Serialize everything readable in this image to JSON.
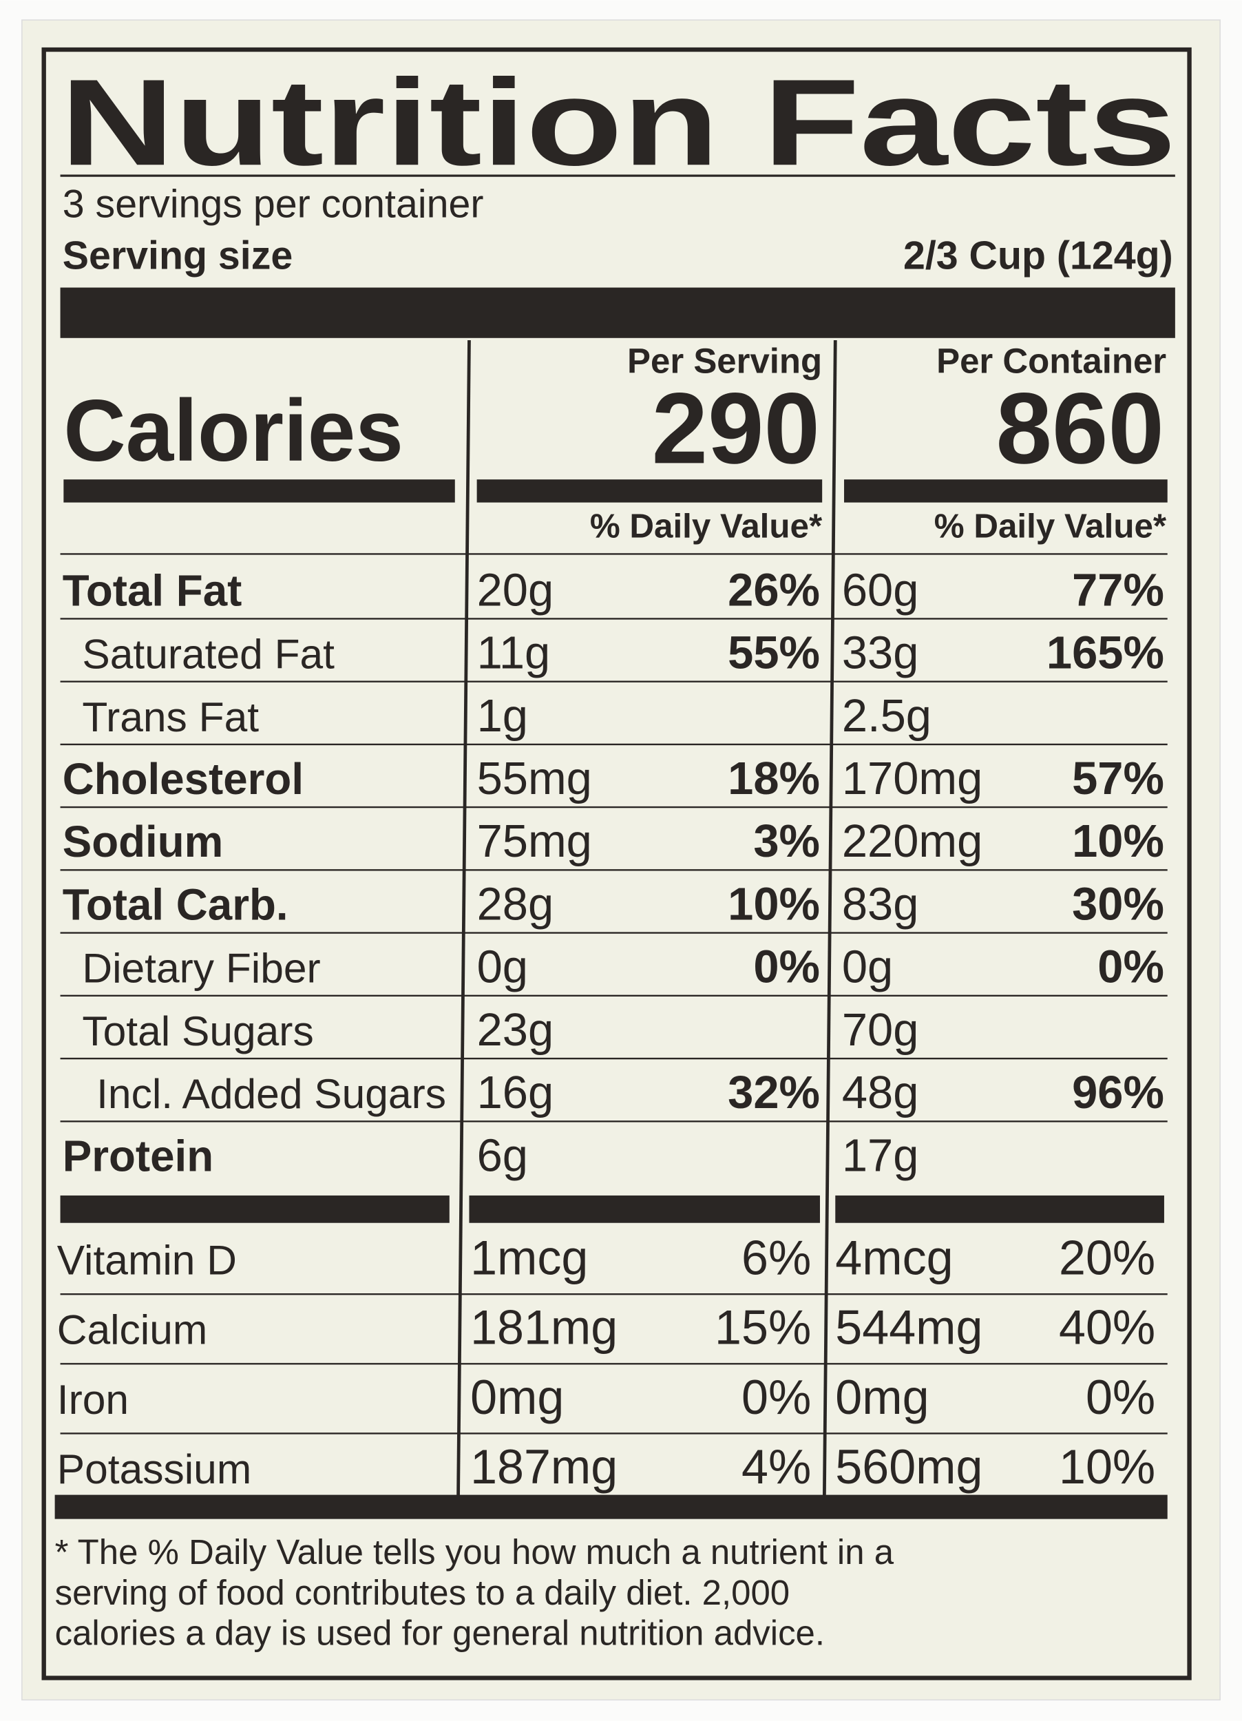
{
  "header": {
    "title": "Nutrition Facts",
    "servings": "3 servings per container",
    "serving_size_label": "Serving size",
    "serving_size": "2/3 Cup (124g)"
  },
  "calories_label": "Calories",
  "columns": [
    {
      "heading": "Per Serving",
      "calories": 290,
      "dv_heading": "% Daily Value*"
    },
    {
      "heading": "Per Container",
      "calories": 860,
      "dv_heading": "% Daily Value*"
    }
  ],
  "nutrients": [
    {
      "name": "Total Fat",
      "per_serving": {
        "amount": "20g",
        "dv": "26%"
      },
      "per_container": {
        "amount": "60g",
        "dv": "77%"
      },
      "sub": [
        {
          "name": "Saturated Fat",
          "per_serving": {
            "amount": "11g",
            "dv": "55%"
          },
          "per_container": {
            "amount": "33g",
            "dv": "165%"
          }
        },
        {
          "name": "Trans Fat",
          "per_serving": {
            "amount": "1g"
          },
          "per_container": {
            "amount": "2.5g"
          }
        }
      ]
    },
    {
      "name": "Cholesterol",
      "per_serving": {
        "amount": "55mg",
        "dv": "18%"
      },
      "per_container": {
        "amount": "170mg",
        "dv": "57%"
      }
    },
    {
      "name": "Sodium",
      "per_serving": {
        "amount": "75mg",
        "dv": "3%"
      },
      "per_container": {
        "amount": "220mg",
        "dv": "10%"
      }
    },
    {
      "name": "Total Carb.",
      "per_serving": {
        "amount": "28g",
        "dv": "10%"
      },
      "per_container": {
        "amount": "83g",
        "dv": "30%"
      },
      "sub": [
        {
          "name": "Dietary Fiber",
          "per_serving": {
            "amount": "0g",
            "dv": "0%"
          },
          "per_container": {
            "amount": "0g",
            "dv": "0%"
          }
        },
        {
          "name": "Total Sugars",
          "per_serving": {
            "amount": "23g"
          },
          "per_container": {
            "amount": "70g"
          },
          "sub": [
            {
              "name": "Incl. Added Sugars",
              "per_serving": {
                "amount": "16g",
                "dv": "32%"
              },
              "per_container": {
                "amount": "48g",
                "dv": "96%"
              }
            }
          ]
        }
      ]
    },
    {
      "name": "Protein",
      "per_serving": {
        "amount": "6g"
      },
      "per_container": {
        "amount": "17g"
      }
    }
  ],
  "vitamins": [
    {
      "name": "Vitamin D",
      "per_serving": {
        "amount": "1mcg",
        "dv": "6%"
      },
      "per_container": {
        "amount": "4mcg",
        "dv": "20%"
      }
    },
    {
      "name": "Calcium",
      "per_serving": {
        "amount": "181mg",
        "dv": "15%"
      },
      "per_container": {
        "amount": "544mg",
        "dv": "40%"
      }
    },
    {
      "name": "Iron",
      "per_serving": {
        "amount": "0mg",
        "dv": "0%"
      },
      "per_container": {
        "amount": "0mg",
        "dv": "0%"
      }
    },
    {
      "name": "Potassium",
      "per_serving": {
        "amount": "187mg",
        "dv": "4%"
      },
      "per_container": {
        "amount": "560mg",
        "dv": "10%"
      }
    }
  ],
  "footnote": [
    "* The % Daily Value tells you how much a nutrient in a",
    "serving of food contributes to a daily diet. 2,000",
    "calories a day is used for general nutrition advice."
  ]
}
